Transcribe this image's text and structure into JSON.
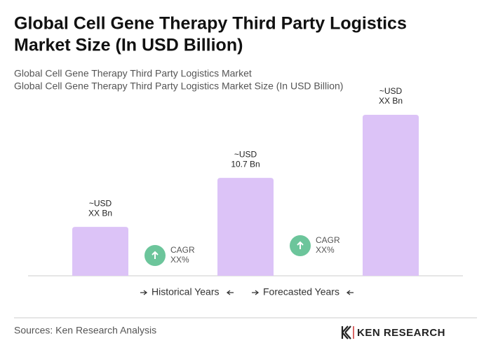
{
  "chart_data": {
    "type": "bar",
    "title": [
      "Global Cell Gene Therapy Third Party Logistics",
      "Market Size (In USD Billion)"
    ],
    "subtitle": [
      "Global Cell Gene Therapy Third Party Logistics Market",
      "Global Cell Gene Therapy Third Party Logistics Market Size (In USD Billion)"
    ],
    "values": [
      5.35,
      10.7,
      17.6
    ],
    "value_labels": [
      [
        "~USD",
        "XX Bn"
      ],
      [
        "~USD",
        "10.7 Bn"
      ],
      [
        "~USD",
        "XX Bn"
      ]
    ],
    "color": "#dcc3f7",
    "annotations": [
      [
        "CAGR",
        "XX%"
      ],
      [
        "CAGR",
        "XX%"
      ]
    ],
    "annotation_color": "#6cc59b",
    "legend": [
      "Historical Years",
      "Forecasted Years"
    ],
    "source": "Sources: Ken Research Analysis",
    "logo": "KEN RESEARCH"
  }
}
